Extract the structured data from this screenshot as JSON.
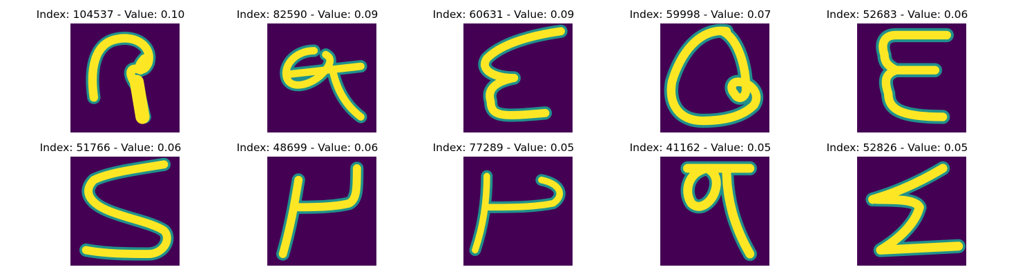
{
  "colors": {
    "background": "#440154",
    "stroke_core": "#fde725",
    "stroke_mid": "#b5de2b",
    "stroke_edge": "#35b779",
    "stroke_outer": "#21918c"
  },
  "panels": [
    {
      "title": "Index: 104537 - Value: 0.10",
      "glyph": "handwritten-loop-glyph"
    },
    {
      "title": "Index: 82590 - Value: 0.09",
      "glyph": "handwritten-alpha-glyph"
    },
    {
      "title": "Index: 60631 - Value: 0.09",
      "glyph": "handwritten-epsilon-glyph"
    },
    {
      "title": "Index: 59998 - Value: 0.07",
      "glyph": "handwritten-a-glyph"
    },
    {
      "title": "Index: 52683 - Value: 0.06",
      "glyph": "handwritten-e-glyph"
    },
    {
      "title": "Index: 51766 - Value: 0.06",
      "glyph": "handwritten-s-glyph"
    },
    {
      "title": "Index: 48699 - Value: 0.06",
      "glyph": "handwritten-h-glyph"
    },
    {
      "title": "Index: 77289 - Value: 0.05",
      "glyph": "handwritten-h-glyph"
    },
    {
      "title": "Index: 41162 - Value: 0.05",
      "glyph": "handwritten-q-glyph"
    },
    {
      "title": "Index: 52826 - Value: 0.05",
      "glyph": "handwritten-z-glyph"
    }
  ]
}
